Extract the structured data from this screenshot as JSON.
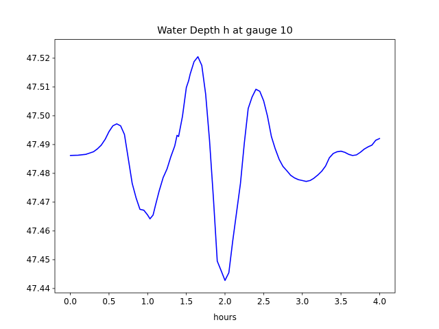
{
  "chart_data": {
    "type": "line",
    "title": "Water Depth h at gauge 10",
    "xlabel": "hours",
    "ylabel": "",
    "xlim": [
      -0.2,
      4.2
    ],
    "ylim": [
      47.4385,
      47.5265
    ],
    "x_ticks": [
      0.0,
      0.5,
      1.0,
      1.5,
      2.0,
      2.5,
      3.0,
      3.5,
      4.0
    ],
    "x_tick_labels": [
      "0.0",
      "0.5",
      "1.0",
      "1.5",
      "2.0",
      "2.5",
      "3.0",
      "3.5",
      "4.0"
    ],
    "y_ticks": [
      47.44,
      47.45,
      47.46,
      47.47,
      47.48,
      47.49,
      47.5,
      47.51,
      47.52
    ],
    "y_tick_labels": [
      "47.44",
      "47.45",
      "47.46",
      "47.47",
      "47.48",
      "47.49",
      "47.50",
      "47.51",
      "47.52"
    ],
    "grid": false,
    "legend": "none",
    "series": [
      {
        "color": "#0000ff",
        "x": [
          0.0,
          0.1,
          0.2,
          0.3,
          0.35,
          0.4,
          0.45,
          0.5,
          0.55,
          0.6,
          0.65,
          0.7,
          0.75,
          0.8,
          0.85,
          0.9,
          0.95,
          1.0,
          1.03,
          1.07,
          1.1,
          1.15,
          1.2,
          1.25,
          1.3,
          1.35,
          1.38,
          1.4,
          1.45,
          1.5,
          1.53,
          1.55,
          1.6,
          1.65,
          1.7,
          1.75,
          1.8,
          1.85,
          1.9,
          1.95,
          2.0,
          2.05,
          2.1,
          2.15,
          2.2,
          2.25,
          2.3,
          2.35,
          2.4,
          2.45,
          2.5,
          2.55,
          2.6,
          2.65,
          2.7,
          2.75,
          2.8,
          2.85,
          2.9,
          2.95,
          3.0,
          3.05,
          3.1,
          3.15,
          3.2,
          3.25,
          3.3,
          3.35,
          3.4,
          3.45,
          3.5,
          3.55,
          3.6,
          3.65,
          3.7,
          3.75,
          3.8,
          3.85,
          3.9,
          3.95,
          4.0
        ],
        "y": [
          47.4862,
          47.4863,
          47.4866,
          47.4875,
          47.4885,
          47.4898,
          47.4918,
          47.4945,
          47.4965,
          47.4972,
          47.4965,
          47.4935,
          47.485,
          47.4765,
          47.4715,
          47.4675,
          47.4672,
          47.4655,
          47.4642,
          47.4655,
          47.4688,
          47.474,
          47.4785,
          47.4815,
          47.4858,
          47.4895,
          47.4932,
          47.4928,
          47.4998,
          47.5098,
          47.5122,
          47.5145,
          47.5188,
          47.5205,
          47.5175,
          47.5075,
          47.4915,
          47.4715,
          47.4495,
          47.4462,
          47.4428,
          47.4455,
          47.4565,
          47.4665,
          47.4765,
          47.4905,
          47.5025,
          47.5065,
          47.5092,
          47.5085,
          47.5052,
          47.4998,
          47.4928,
          47.4885,
          47.4849,
          47.4824,
          47.4809,
          47.4793,
          47.4784,
          47.4778,
          47.4775,
          47.4772,
          47.4775,
          47.4783,
          47.4794,
          47.4807,
          47.4825,
          47.4854,
          47.4869,
          47.4875,
          47.4877,
          47.4873,
          47.4866,
          47.4862,
          47.4864,
          47.4873,
          47.4884,
          47.4892,
          47.4898,
          47.4915,
          47.4921
        ]
      }
    ]
  }
}
